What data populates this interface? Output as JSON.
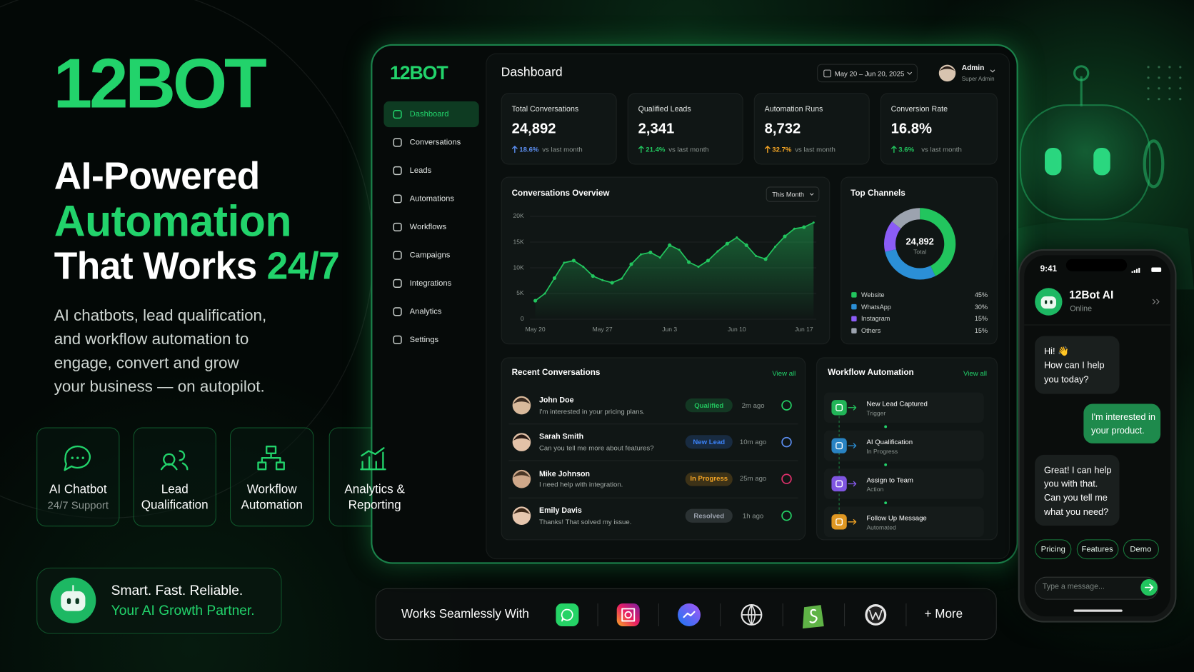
{
  "brand": {
    "logo": "12BOT"
  },
  "hero": {
    "line1": "AI-Powered",
    "line2": "Automation",
    "line3": "That Works",
    "line3_accent": "24/7",
    "description": [
      "AI chatbots, lead qualification,",
      "and workflow automation to",
      "engage, convert and grow",
      "your business — on autopilot."
    ]
  },
  "features": [
    {
      "title": "AI Chatbot",
      "subtitle": "24/7 Support"
    },
    {
      "title": "Lead Qualification"
    },
    {
      "title": "Workflow Automation"
    },
    {
      "title": "Analytics & Reporting"
    }
  ],
  "tagline": {
    "line1": "Smart. Fast. Reliable.",
    "line2": "Your AI Growth Partner."
  },
  "integrations": {
    "label": "Works Seamlessly With",
    "more": "+ More"
  },
  "dashboard": {
    "logo": "12BOT",
    "nav": [
      "Dashboard",
      "Conversations",
      "Leads",
      "Automations",
      "Workflows",
      "Campaigns",
      "Integrations",
      "Analytics",
      "Settings"
    ],
    "title": "Dashboard",
    "date_range": "May 20 – Jun 20, 2025",
    "user": {
      "name": "Admin",
      "role": "Super Admin"
    },
    "kpis": [
      {
        "label": "Total Conversations",
        "value": "24,892",
        "change": "18.6%",
        "change_note": "vs last month",
        "color": "#5b8def"
      },
      {
        "label": "Qualified Leads",
        "value": "2,341",
        "change": "21.4%",
        "change_note": "vs last month",
        "color": "#22c55e"
      },
      {
        "label": "Automation Runs",
        "value": "8,732",
        "change": "32.7%",
        "change_note": "vs last month",
        "color": "#f5a524"
      },
      {
        "label": "Conversion Rate",
        "value": "16.8%",
        "change": "3.6%",
        "change_note": "vs last month",
        "color": "#22c55e"
      }
    ],
    "recent": {
      "title": "Recent Conversations",
      "view_all": "View all",
      "items": [
        {
          "name": "John Doe",
          "message": "I'm interested in your pricing plans.",
          "status": "Qualified",
          "status_color": "#22c55e",
          "time": "2m ago"
        },
        {
          "name": "Sarah Smith",
          "message": "Can you tell me more about features?",
          "status": "New Lead",
          "status_color": "#3b82f6",
          "time": "10m ago"
        },
        {
          "name": "Mike Johnson",
          "message": "I need help with integration.",
          "status": "In Progress",
          "status_color": "#f5a524",
          "time": "25m ago"
        },
        {
          "name": "Emily Davis",
          "message": "Thanks! That solved my issue.",
          "status": "Resolved",
          "status_color": "#9ca3af",
          "time": "1h ago"
        }
      ]
    },
    "workflow": {
      "title": "Workflow Automation",
      "view_all": "View all",
      "steps": [
        {
          "title": "New Lead Captured",
          "subtitle": "Trigger"
        },
        {
          "title": "AI Qualification",
          "subtitle": "In Progress"
        },
        {
          "title": "Assign to Team",
          "subtitle": "Action"
        },
        {
          "title": "Follow Up Message",
          "subtitle": "Automated"
        }
      ]
    }
  },
  "chart_data": [
    {
      "type": "line",
      "title": "Conversations Overview",
      "filter": "This Month",
      "categories": [
        "May 20",
        null,
        null,
        null,
        null,
        null,
        null,
        "May 27",
        null,
        null,
        null,
        null,
        null,
        null,
        "Jun 3",
        null,
        null,
        null,
        null,
        null,
        null,
        "Jun 10",
        null,
        null,
        null,
        null,
        null,
        null,
        "Jun 17",
        null
      ],
      "series": [
        {
          "color": "#22c55e",
          "values": [
            3600,
            5000,
            8000,
            11000,
            11400,
            10200,
            8400,
            7600,
            7100,
            7900,
            10700,
            12600,
            13000,
            12000,
            14400,
            13500,
            11100,
            10200,
            11400,
            13200,
            14700,
            15900,
            14400,
            12300,
            11700,
            14100,
            16100,
            17600,
            17900,
            18800
          ]
        }
      ],
      "ylim": [
        0,
        20000
      ],
      "yticks": [
        0,
        {
          "value": 5000,
          "label": "5K"
        },
        {
          "value": 10000,
          "label": "10K"
        },
        {
          "value": 15000,
          "label": "15K"
        },
        {
          "value": 20000,
          "label": "20K"
        }
      ],
      "grid": true
    },
    {
      "type": "pie",
      "title": "Top Channels",
      "center_value": "24,892",
      "center_label": "Total",
      "categories": [
        "Website",
        "WhatsApp",
        "Instagram",
        "Others"
      ],
      "values": [
        45,
        30,
        15,
        15
      ],
      "value_labels": [
        "45%",
        "30%",
        "15%",
        "15%"
      ],
      "colors": [
        "#22c55e",
        "#2b8fd6",
        "#8b5cf6",
        "#9ca3af"
      ]
    }
  ],
  "phone": {
    "time": "9:41",
    "name": "12Bot AI",
    "status": "Online",
    "greeting": [
      "Hi! 👋",
      "How can I help",
      "you today?"
    ],
    "user_message": [
      "I'm interested in",
      "your product."
    ],
    "reply": [
      "Great! I can help",
      "you with that.",
      "Can you tell me",
      "what you need?"
    ],
    "quick_replies": [
      "Pricing",
      "Features",
      "Demo"
    ],
    "input_placeholder": "Type a message..."
  }
}
